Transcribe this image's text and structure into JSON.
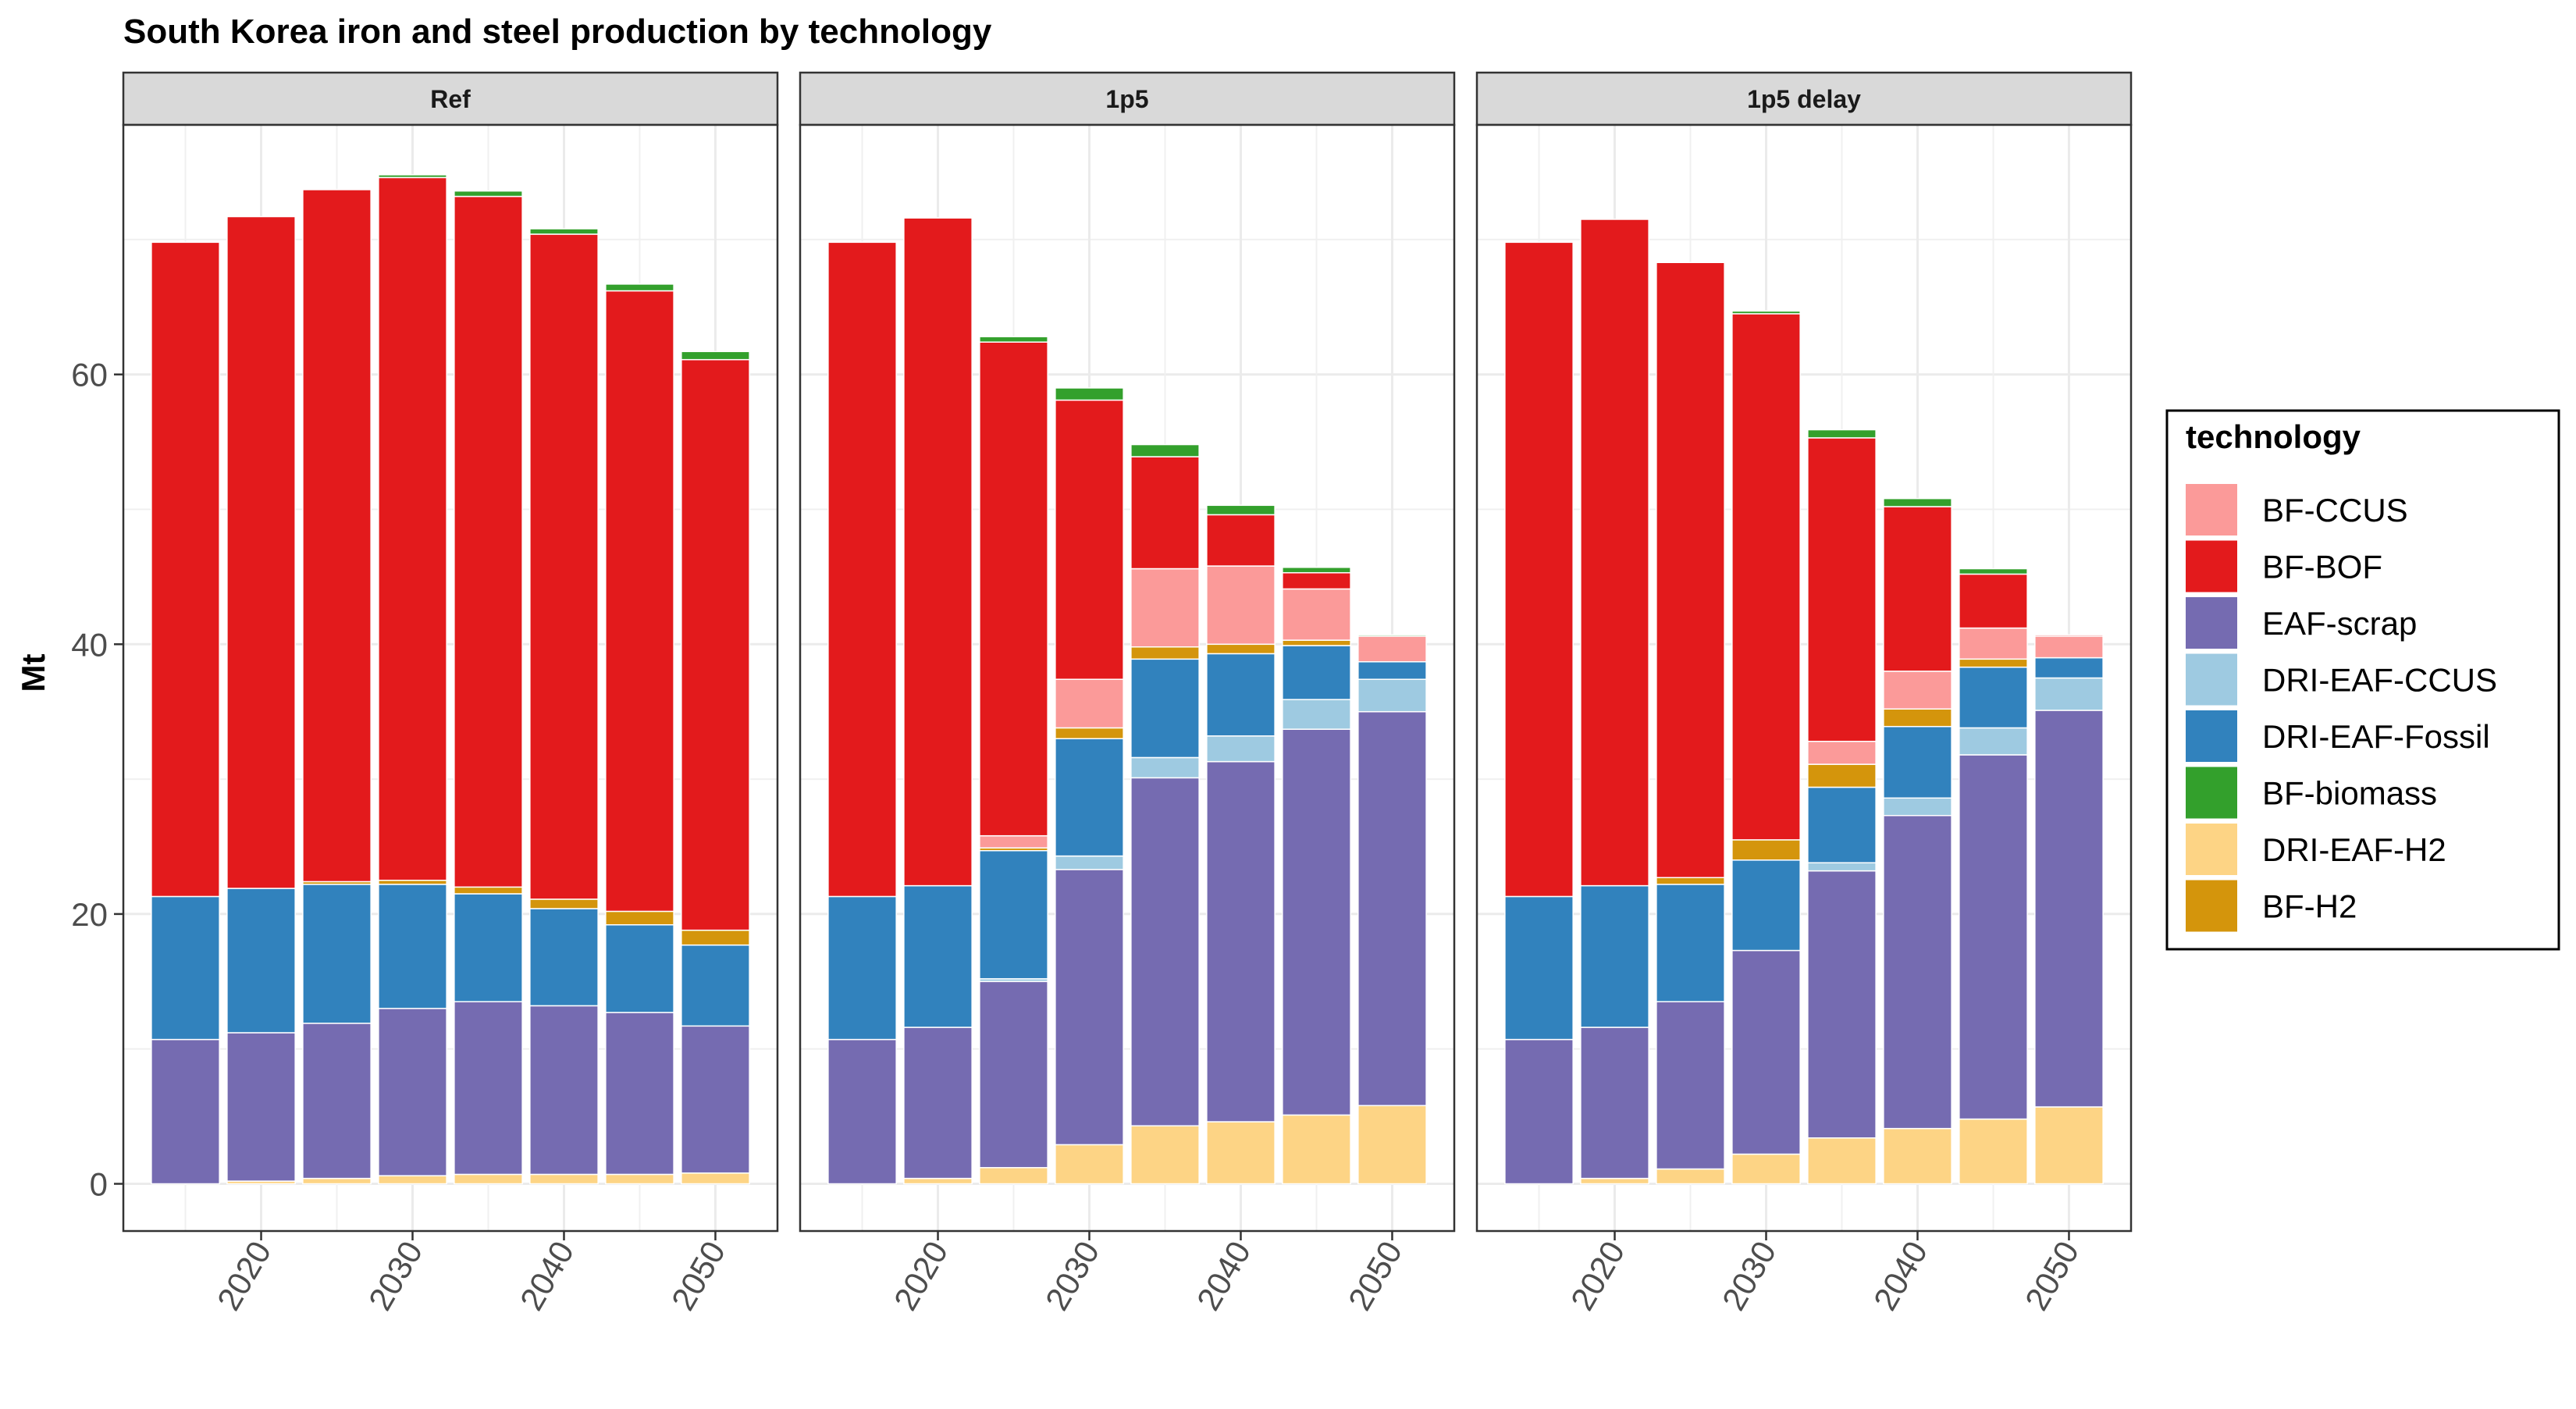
{
  "chart_data": {
    "type": "bar",
    "title": "South Korea iron and steel production by technology",
    "xlabel": "",
    "ylabel": "Mt",
    "ylim": [
      -3.5,
      78.5
    ],
    "yticks": [
      0,
      20,
      40,
      60
    ],
    "xticks": [
      2020,
      2030,
      2040,
      2050
    ],
    "x": [
      2015,
      2020,
      2025,
      2030,
      2035,
      2040,
      2045,
      2050
    ],
    "grid": true,
    "legend": {
      "title": "technology",
      "position": "right",
      "entries": [
        "BF-CCUS",
        "BF-BOF",
        "EAF-scrap",
        "DRI-EAF-CCUS",
        "DRI-EAF-Fossil",
        "BF-biomass",
        "DRI-EAF-H2",
        "BF-H2"
      ]
    },
    "colors": {
      "BF-CCUS": "#fb9a99",
      "BF-BOF": "#e31a1c",
      "EAF-scrap": "#756bb1",
      "DRI-EAF-CCUS": "#9ecae1",
      "DRI-EAF-Fossil": "#3182bd",
      "BF-biomass": "#33a02c",
      "DRI-EAF-H2": "#fdd485",
      "BF-H2": "#d4950c"
    },
    "stack_order": [
      "DRI-EAF-H2",
      "EAF-scrap",
      "DRI-EAF-CCUS",
      "DRI-EAF-Fossil",
      "BF-H2",
      "BF-CCUS",
      "BF-BOF",
      "BF-biomass"
    ],
    "panels": [
      {
        "name": "Ref",
        "series": [
          {
            "name": "DRI-EAF-H2",
            "values": [
              0,
              0.2,
              0.4,
              0.6,
              0.7,
              0.7,
              0.7,
              0.8
            ]
          },
          {
            "name": "EAF-scrap",
            "values": [
              10.7,
              11.0,
              11.5,
              12.4,
              12.8,
              12.5,
              12.0,
              10.9
            ]
          },
          {
            "name": "DRI-EAF-CCUS",
            "values": [
              0,
              0,
              0,
              0,
              0,
              0,
              0,
              0
            ]
          },
          {
            "name": "DRI-EAF-Fossil",
            "values": [
              10.6,
              10.7,
              10.3,
              9.2,
              8.0,
              7.2,
              6.5,
              6.0
            ]
          },
          {
            "name": "BF-H2",
            "values": [
              0,
              0,
              0.2,
              0.3,
              0.5,
              0.7,
              1.0,
              1.1
            ]
          },
          {
            "name": "BF-CCUS",
            "values": [
              0,
              0,
              0,
              0,
              0,
              0,
              0,
              0
            ]
          },
          {
            "name": "BF-BOF",
            "values": [
              48.5,
              49.8,
              51.3,
              52.1,
              51.2,
              49.3,
              46.0,
              42.3
            ]
          },
          {
            "name": "BF-biomass",
            "values": [
              0,
              0,
              0,
              0.2,
              0.4,
              0.4,
              0.5,
              0.6
            ]
          }
        ]
      },
      {
        "name": "1p5",
        "series": [
          {
            "name": "DRI-EAF-H2",
            "values": [
              0,
              0.4,
              1.2,
              2.9,
              4.3,
              4.6,
              5.1,
              5.8
            ]
          },
          {
            "name": "EAF-scrap",
            "values": [
              10.7,
              11.2,
              13.8,
              20.4,
              25.8,
              26.7,
              28.6,
              29.2
            ]
          },
          {
            "name": "DRI-EAF-CCUS",
            "values": [
              0,
              0,
              0.2,
              1.0,
              1.5,
              1.9,
              2.2,
              2.4
            ]
          },
          {
            "name": "DRI-EAF-Fossil",
            "values": [
              10.6,
              10.5,
              9.5,
              8.7,
              7.3,
              6.1,
              4.0,
              1.3
            ]
          },
          {
            "name": "BF-H2",
            "values": [
              0,
              0,
              0.2,
              0.8,
              0.9,
              0.7,
              0.4,
              0
            ]
          },
          {
            "name": "BF-CCUS",
            "values": [
              0,
              0,
              0.9,
              3.6,
              5.8,
              5.8,
              3.8,
              1.9
            ]
          },
          {
            "name": "BF-BOF",
            "values": [
              48.5,
              49.5,
              36.6,
              20.7,
              8.3,
              3.8,
              1.2,
              0
            ]
          },
          {
            "name": "BF-biomass",
            "values": [
              0,
              0,
              0.4,
              0.9,
              0.9,
              0.7,
              0.4,
              0.1
            ]
          }
        ]
      },
      {
        "name": "1p5 delay",
        "series": [
          {
            "name": "DRI-EAF-H2",
            "values": [
              0,
              0.4,
              1.1,
              2.2,
              3.4,
              4.1,
              4.8,
              5.7
            ]
          },
          {
            "name": "EAF-scrap",
            "values": [
              10.7,
              11.2,
              12.4,
              15.1,
              19.8,
              23.2,
              27.0,
              29.4
            ]
          },
          {
            "name": "DRI-EAF-CCUS",
            "values": [
              0,
              0,
              0,
              0,
              0.6,
              1.3,
              2.0,
              2.4
            ]
          },
          {
            "name": "DRI-EAF-Fossil",
            "values": [
              10.6,
              10.5,
              8.7,
              6.7,
              5.6,
              5.3,
              4.5,
              1.5
            ]
          },
          {
            "name": "BF-H2",
            "values": [
              0,
              0,
              0.5,
              1.5,
              1.7,
              1.3,
              0.6,
              0
            ]
          },
          {
            "name": "BF-CCUS",
            "values": [
              0,
              0,
              0,
              0,
              1.7,
              2.8,
              2.3,
              1.6
            ]
          },
          {
            "name": "BF-BOF",
            "values": [
              48.5,
              49.4,
              45.6,
              39.0,
              22.5,
              12.2,
              4.0,
              0.1
            ]
          },
          {
            "name": "BF-biomass",
            "values": [
              0,
              0,
              0,
              0.2,
              0.6,
              0.6,
              0.4,
              0
            ]
          }
        ]
      }
    ]
  }
}
